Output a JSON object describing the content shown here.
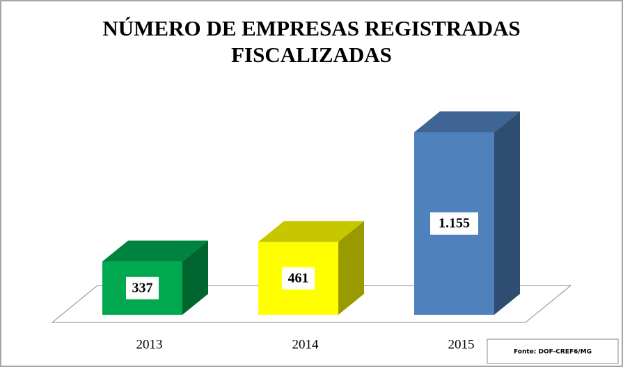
{
  "chart_data": {
    "type": "bar3d",
    "title": "NÚMERO DE EMPRESAS REGISTRADAS FISCALIZADAS",
    "categories": [
      "2013",
      "2014",
      "2015"
    ],
    "values": [
      337,
      461,
      1155
    ],
    "value_labels": [
      "337",
      "461",
      "1.155"
    ],
    "colors": [
      "#00a84f",
      "#ffff00",
      "#4f81bd"
    ],
    "source": "Fonte: DOF-CREF6/MG"
  }
}
